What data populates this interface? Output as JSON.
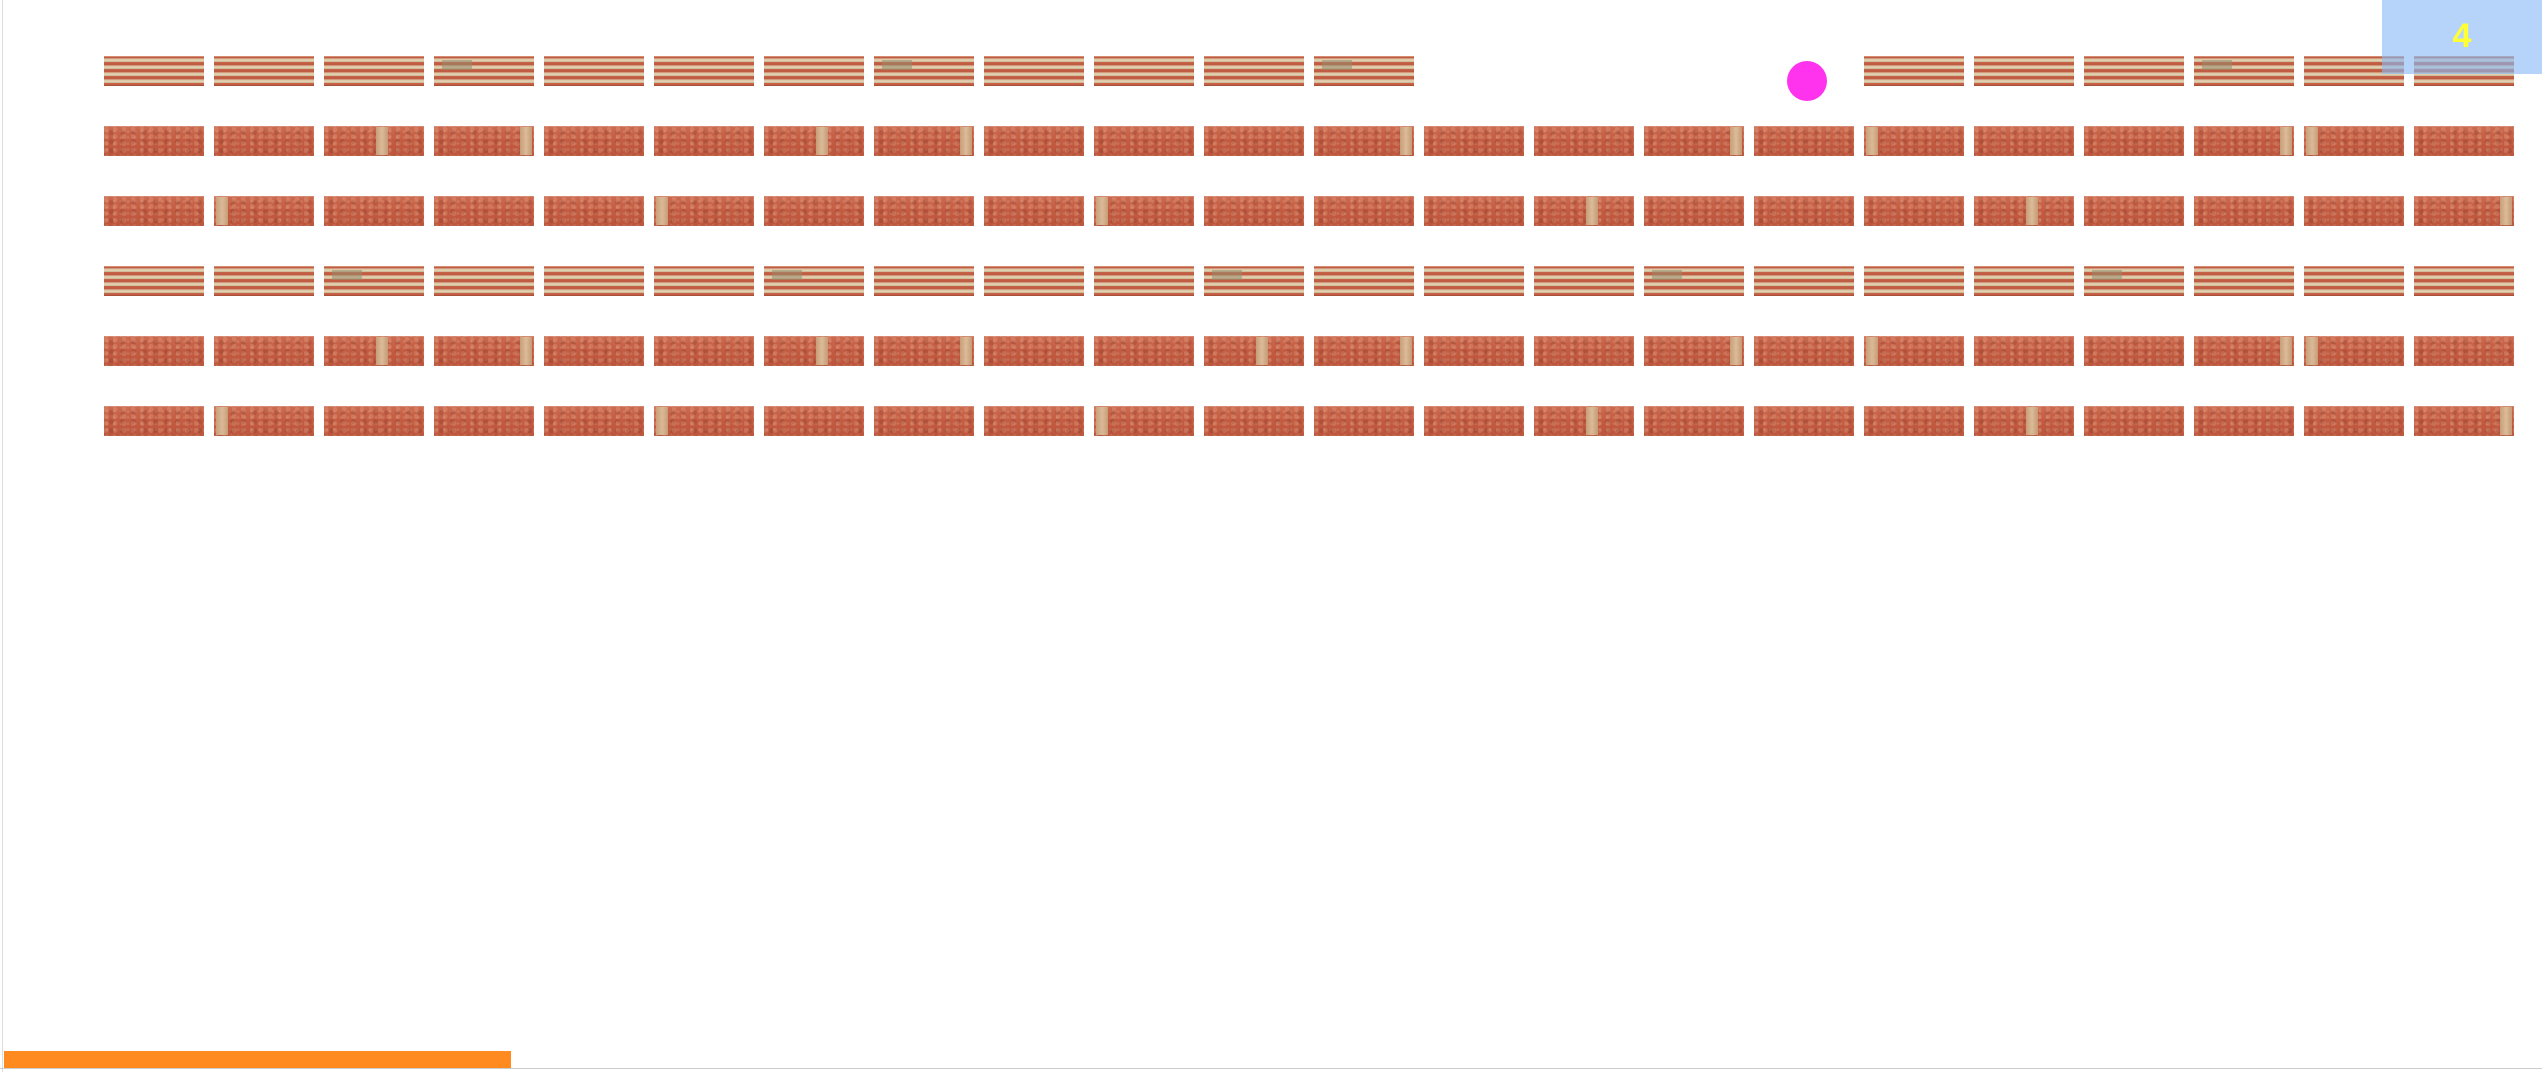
{
  "game": {
    "score": "4",
    "brick_rows": 6,
    "bricks_per_row": 22,
    "removed_bricks": [
      {
        "row": 0,
        "col": 12
      },
      {
        "row": 0,
        "col": 13
      },
      {
        "row": 0,
        "col": 14
      },
      {
        "row": 0,
        "col": 15
      }
    ],
    "ball_color": "#ff33ee",
    "paddle_color": "#ff8a1f",
    "score_color": "#ffff33",
    "score_panel_color": "#89baf6",
    "brick_color": "#c65f45"
  }
}
